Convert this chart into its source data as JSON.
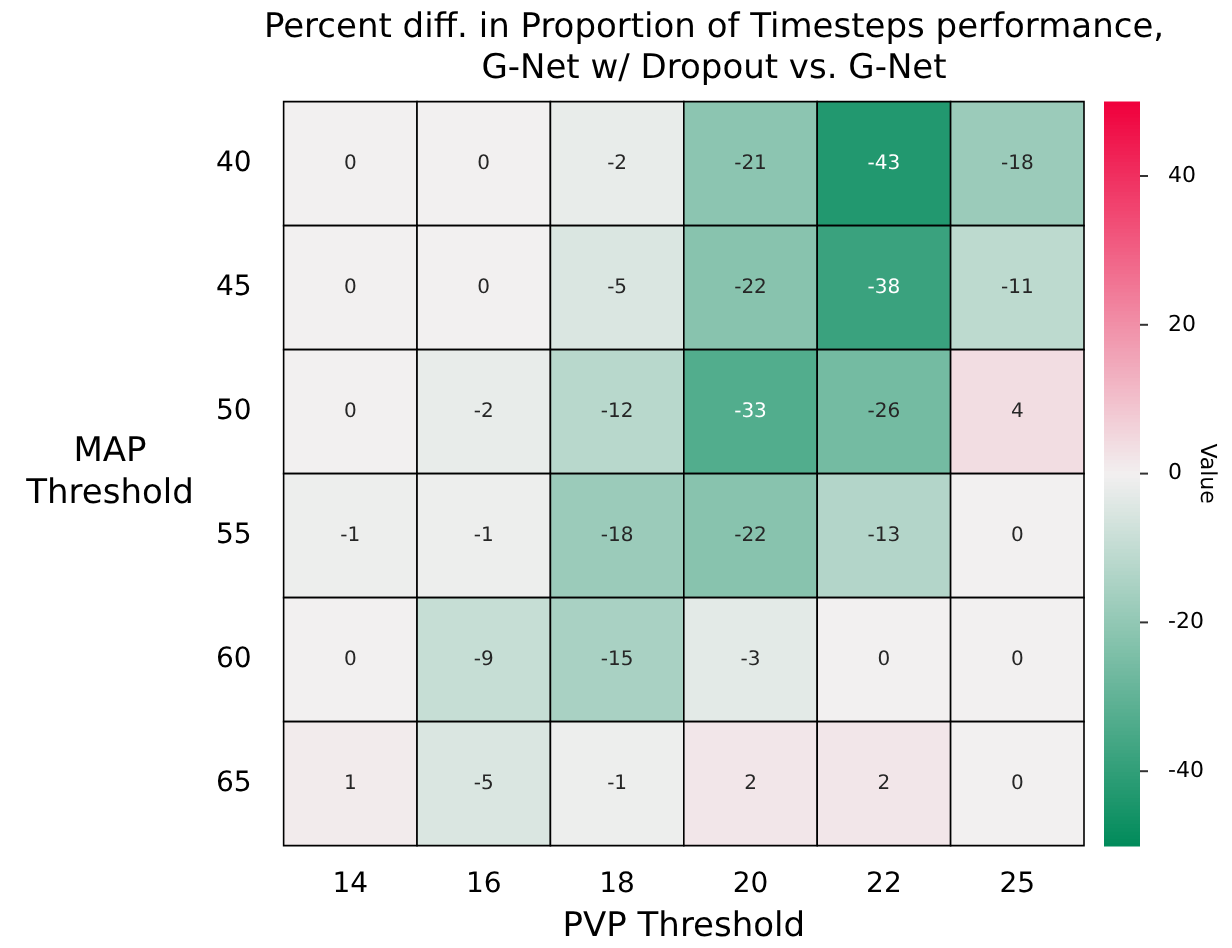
{
  "chart_data": {
    "type": "heatmap",
    "title": "Percent diff. in Proportion of Timesteps performance,\nG-Net w/ Dropout vs. G-Net",
    "xlabel": "PVP Threshold",
    "ylabel": "MAP\nThreshold",
    "clabel": "Value",
    "categories": [
      "14",
      "16",
      "18",
      "20",
      "22",
      "25"
    ],
    "y_categories": [
      "40",
      "45",
      "50",
      "55",
      "60",
      "65"
    ],
    "cells": [
      [
        0,
        0,
        -2,
        -21,
        -43,
        -18
      ],
      [
        0,
        0,
        -5,
        -22,
        -38,
        -11
      ],
      [
        0,
        -2,
        -12,
        -33,
        -26,
        4
      ],
      [
        -1,
        -1,
        -18,
        -22,
        -13,
        0
      ],
      [
        0,
        -9,
        -15,
        -3,
        0,
        0
      ],
      [
        1,
        -5,
        -1,
        2,
        2,
        0
      ]
    ],
    "clim": [
      -50,
      50
    ],
    "cticks": [
      -40,
      -20,
      0,
      20,
      40
    ],
    "data_labels": true
  }
}
